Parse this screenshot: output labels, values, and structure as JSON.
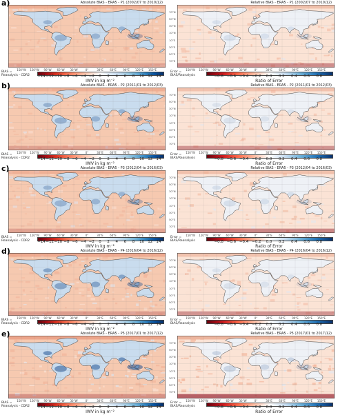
{
  "colors": {
    "ocean_abs": "#f6c9b0",
    "ocean_rel": "#fbe3d5",
    "land_blue": "#c9dcee",
    "land_rel": "#eef1f6",
    "coast": "#444444",
    "deep_red": "#8b0d1d",
    "deep_blue": "#1d4f8f"
  },
  "absolute_tick_labels": [
    "−14",
    "−12",
    "−10",
    "−8",
    "−6",
    "−4",
    "−2",
    "0",
    "2",
    "4",
    "6",
    "8",
    "10",
    "12",
    "14"
  ],
  "relative_tick_labels": [
    "−0.8",
    "−0.6",
    "−0.4",
    "−0.2",
    "0.0",
    "0.2",
    "0.4",
    "0.6",
    "0.8"
  ],
  "absolute_axis_title": "IWV in kg m⁻²",
  "relative_axis_title": "Ratio of Error",
  "abs_cb_label_1": "BIAS =",
  "abs_cb_label_2": "Reanalysis - CDR2",
  "rel_cb_label_1": "Error =",
  "rel_cb_label_2": "BIAS/Reanalysis",
  "lon_labels": [
    "150°W",
    "120°W",
    "90°W",
    "60°W",
    "30°W",
    "0°",
    "30°E",
    "60°E",
    "90°E",
    "120°E",
    "150°E"
  ],
  "lat_labels": [
    "70°N",
    "50°N",
    "30°N",
    "10°N",
    "10°S",
    "30°S",
    "50°S",
    "70°S"
  ],
  "chart_data": [
    {
      "type": "heatmap",
      "panel": "a)",
      "title": "Absolute BIAS - ERA5 - P1 (2002/07 to 2010/12)",
      "colorbar": "absolute",
      "intensity": 0.5
    },
    {
      "type": "heatmap",
      "panel": "",
      "title": "Relative BIAS - ERA5 - P1 (2002/07 to 2010/12)",
      "colorbar": "relative",
      "intensity": 0.5
    },
    {
      "type": "heatmap",
      "panel": "b)",
      "title": "Absolute BIAS - ERA5 - P2 (2011/01 to 2012/03)",
      "colorbar": "absolute",
      "intensity": 0.55
    },
    {
      "type": "heatmap",
      "panel": "",
      "title": "Relative BIAS - ERA5 - P2 (2011/01 to 2012/03)",
      "colorbar": "relative",
      "intensity": 0.45
    },
    {
      "type": "heatmap",
      "panel": "c)",
      "title": "Absolute BIAS - ERA5 - P3 (2012/04 to 2016/03)",
      "colorbar": "absolute",
      "intensity": 0.5
    },
    {
      "type": "heatmap",
      "panel": "",
      "title": "Relative BIAS - ERA5 - P3 (2012/04 to 2016/03)",
      "colorbar": "relative",
      "intensity": 0.55
    },
    {
      "type": "heatmap",
      "panel": "d)",
      "title": "Absolute BIAS - ERA5 - P4 (2016/04 to 2016/12)",
      "colorbar": "absolute",
      "intensity": 0.7
    },
    {
      "type": "heatmap",
      "panel": "",
      "title": "Relative BIAS - ERA5 - P4 (2016/04 to 2016/12)",
      "colorbar": "relative",
      "intensity": 0.45
    },
    {
      "type": "heatmap",
      "panel": "e)",
      "title": "Absolute BIAS - ERA5 - P5 (2017/01 to 2017/12)",
      "colorbar": "absolute",
      "intensity": 0.95
    },
    {
      "type": "heatmap",
      "panel": "",
      "title": "Relative BIAS - ERA5 - P5 (2017/01 to 2017/12)",
      "colorbar": "relative",
      "intensity": 0.85
    }
  ]
}
